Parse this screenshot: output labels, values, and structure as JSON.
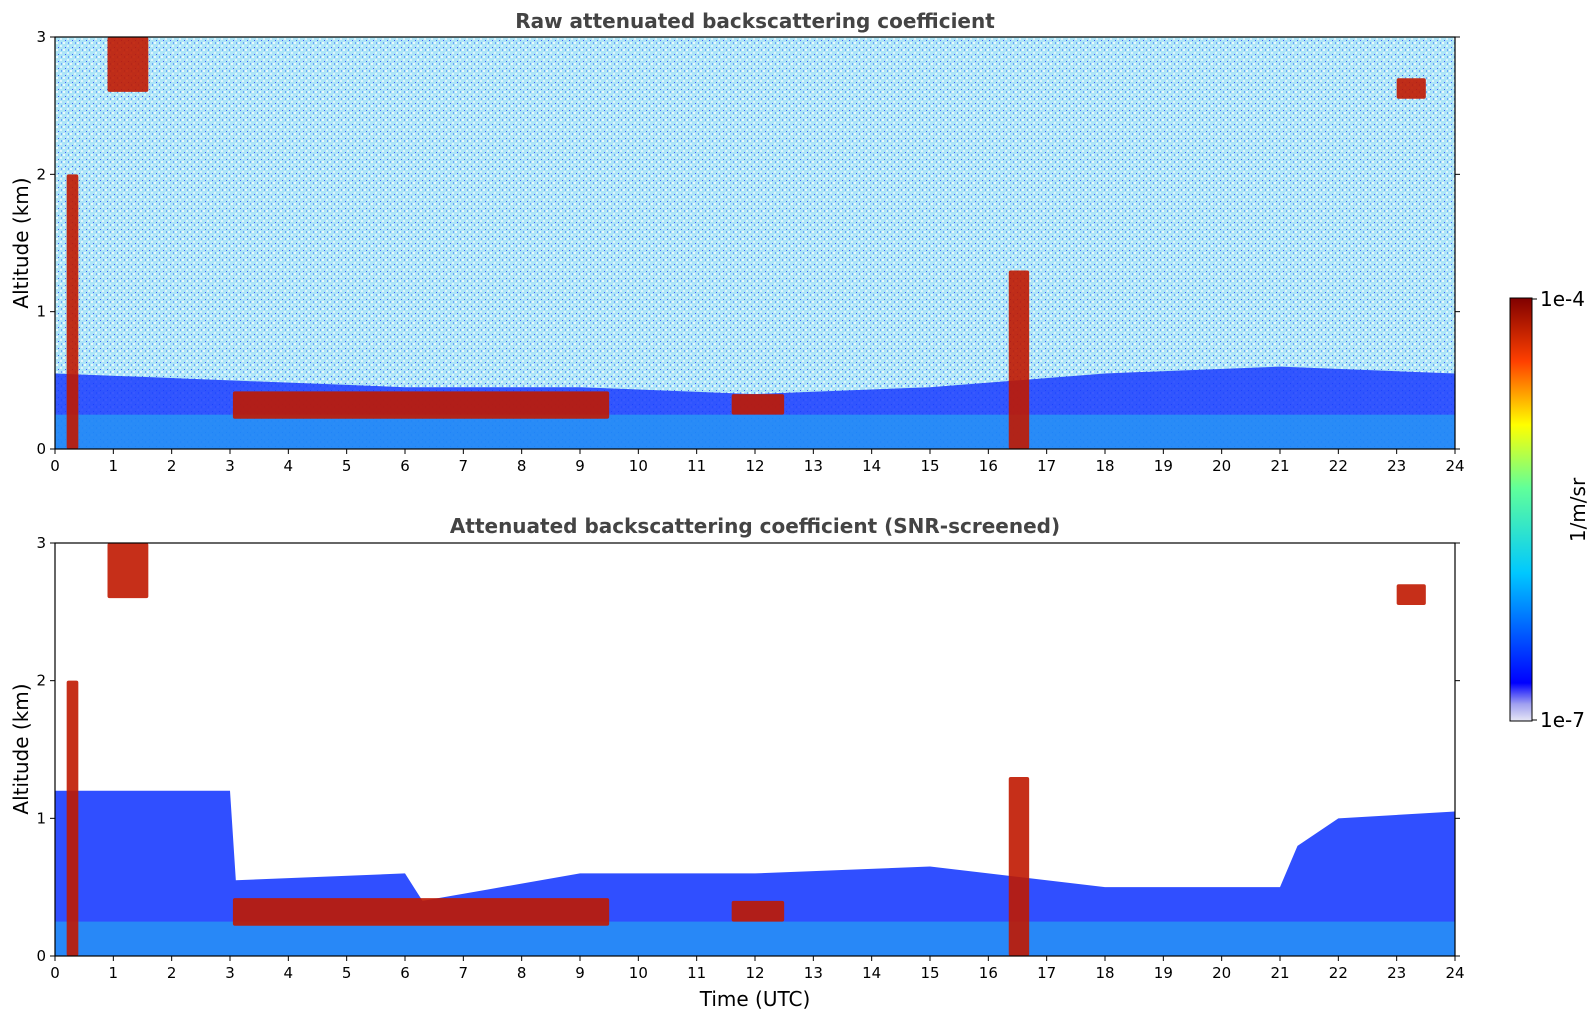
{
  "chart_data": [
    {
      "type": "heatmap",
      "title": "Raw attenuated backscattering coefficient",
      "xlabel": "",
      "ylabel": "Altitude (km)",
      "xlim": [
        0,
        24
      ],
      "ylim": [
        0,
        3
      ],
      "x_ticks": [
        "0",
        "1",
        "2",
        "3",
        "4",
        "5",
        "6",
        "7",
        "8",
        "9",
        "10",
        "11",
        "12",
        "13",
        "14",
        "15",
        "16",
        "17",
        "18",
        "19",
        "20",
        "21",
        "22",
        "23",
        "24"
      ],
      "y_ticks": [
        "0",
        "1",
        "2",
        "3"
      ],
      "screened": false,
      "features": {
        "boundary_layer_top_km": [
          [
            0,
            0.55
          ],
          [
            3,
            0.5
          ],
          [
            6,
            0.45
          ],
          [
            9,
            0.45
          ],
          [
            12,
            0.4
          ],
          [
            15,
            0.45
          ],
          [
            18,
            0.55
          ],
          [
            21,
            0.6
          ],
          [
            24,
            0.55
          ]
        ],
        "cloud_layers": [
          {
            "x_range": [
              3.05,
              9.5
            ],
            "alt_km": [
              0.22,
              0.42
            ]
          },
          {
            "x_range": [
              11.6,
              12.5
            ],
            "alt_km": [
              0.25,
              0.4
            ]
          },
          {
            "x_range": [
              16.35,
              16.7
            ],
            "alt_km": [
              0.0,
              1.3
            ]
          },
          {
            "x_range": [
              0.2,
              0.4
            ],
            "alt_km": [
              0.0,
              2.0
            ]
          },
          {
            "x_range": [
              23.0,
              23.5
            ],
            "alt_km": [
              2.55,
              2.7
            ]
          },
          {
            "x_range": [
              0.9,
              1.6
            ],
            "alt_km": [
              2.6,
              3.0
            ]
          }
        ]
      }
    },
    {
      "type": "heatmap",
      "title": "Attenuated backscattering coefficient (SNR-screened)",
      "xlabel": "Time (UTC)",
      "ylabel": "Altitude (km)",
      "xlim": [
        0,
        24
      ],
      "ylim": [
        0,
        3
      ],
      "x_ticks": [
        "0",
        "1",
        "2",
        "3",
        "4",
        "5",
        "6",
        "7",
        "8",
        "9",
        "10",
        "11",
        "12",
        "13",
        "14",
        "15",
        "16",
        "17",
        "18",
        "19",
        "20",
        "21",
        "22",
        "23",
        "24"
      ],
      "y_ticks": [
        "0",
        "1",
        "2",
        "3"
      ],
      "screened": true,
      "features": {
        "screened_signal_top_km": [
          [
            0,
            1.2
          ],
          [
            3,
            1.2
          ],
          [
            3.1,
            0.55
          ],
          [
            6,
            0.6
          ],
          [
            6.3,
            0.4
          ],
          [
            9,
            0.6
          ],
          [
            12,
            0.6
          ],
          [
            15,
            0.65
          ],
          [
            18,
            0.5
          ],
          [
            21,
            0.5
          ],
          [
            21.3,
            0.8
          ],
          [
            22,
            1.0
          ],
          [
            24,
            1.05
          ]
        ],
        "cloud_layers": [
          {
            "x_range": [
              3.05,
              9.5
            ],
            "alt_km": [
              0.22,
              0.42
            ]
          },
          {
            "x_range": [
              11.6,
              12.5
            ],
            "alt_km": [
              0.25,
              0.4
            ]
          },
          {
            "x_range": [
              16.35,
              16.7
            ],
            "alt_km": [
              0.0,
              1.3
            ]
          },
          {
            "x_range": [
              0.2,
              0.4
            ],
            "alt_km": [
              0.0,
              2.0
            ]
          },
          {
            "x_range": [
              23.0,
              23.5
            ],
            "alt_km": [
              2.55,
              2.7
            ]
          },
          {
            "x_range": [
              0.9,
              1.6
            ],
            "alt_km": [
              2.6,
              3.0
            ]
          }
        ]
      }
    }
  ],
  "colorbar": {
    "max_label": "1e-4",
    "min_label": "1e-7",
    "unit_label": "1/m/sr",
    "scale": "log",
    "colormap": "jet",
    "min_color": "#e6e6f5",
    "max_color": "#800000"
  },
  "colors": {
    "axis_frame": "#000000",
    "title_text": "#444444",
    "background": "#ffffff"
  }
}
